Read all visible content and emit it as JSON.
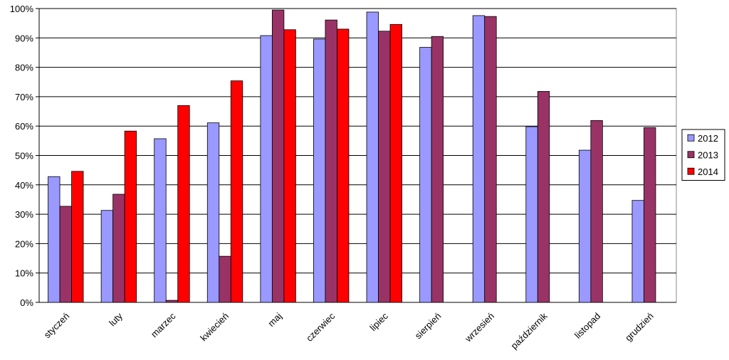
{
  "chart_data": {
    "type": "bar",
    "categories": [
      "styczeń",
      "luty",
      "marzec",
      "kwiecień",
      "maj",
      "czerwiec",
      "lipiec",
      "sierpień",
      "wrzesień",
      "październik",
      "listopad",
      "grudzień"
    ],
    "series": [
      {
        "name": "2012",
        "color": "#9999ff",
        "values": [
          42.8,
          31.3,
          55.7,
          61.1,
          90.8,
          89.6,
          98.8,
          86.8,
          97.6,
          59.8,
          51.8,
          34.7
        ]
      },
      {
        "name": "2013",
        "color": "#993366",
        "values": [
          32.7,
          36.8,
          0.7,
          15.7,
          99.5,
          96.1,
          92.3,
          90.5,
          97.3,
          71.8,
          61.9,
          59.5
        ]
      },
      {
        "name": "2014",
        "color": "#ff0000",
        "values": [
          44.6,
          58.3,
          67.0,
          75.4,
          92.8,
          93.0,
          94.6,
          null,
          null,
          null,
          null,
          null
        ]
      }
    ],
    "ylim": [
      0,
      100
    ],
    "yticks": [
      {
        "value": 0,
        "label": "0%"
      },
      {
        "value": 10,
        "label": "10%"
      },
      {
        "value": 20,
        "label": "20%"
      },
      {
        "value": 30,
        "label": "30%"
      },
      {
        "value": 40,
        "label": "40%"
      },
      {
        "value": 50,
        "label": "50%"
      },
      {
        "value": 60,
        "label": "60%"
      },
      {
        "value": 70,
        "label": "70%"
      },
      {
        "value": 80,
        "label": "80%"
      },
      {
        "value": 90,
        "label": "90%"
      },
      {
        "value": 100,
        "label": "100%"
      }
    ],
    "grid": true,
    "legend": "right"
  }
}
